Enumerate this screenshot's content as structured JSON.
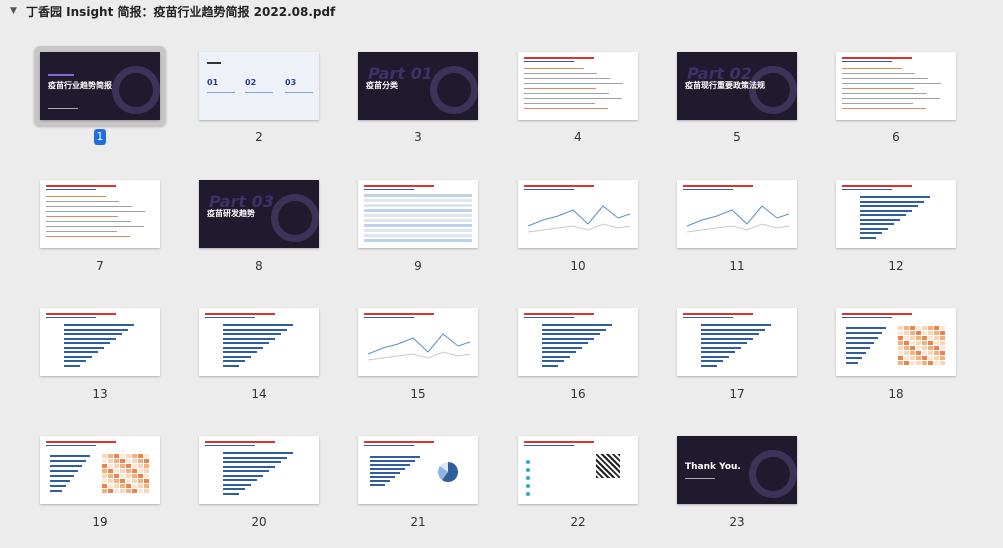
{
  "window": {
    "title": "丁香园 Insight 简报：疫苗行业趋势简报 2022.08.pdf"
  },
  "selected_page": "1",
  "pages": [
    {
      "num": "1",
      "kind": "cover",
      "title": "疫苗行业趋势简报"
    },
    {
      "num": "2",
      "kind": "toc",
      "items": [
        "01",
        "02",
        "03"
      ]
    },
    {
      "num": "3",
      "kind": "section",
      "part": "Part 01",
      "title": "疫苗分类"
    },
    {
      "num": "4",
      "kind": "text"
    },
    {
      "num": "5",
      "kind": "section",
      "part": "Part 02",
      "title": "疫苗现行重要政策法规"
    },
    {
      "num": "6",
      "kind": "text"
    },
    {
      "num": "7",
      "kind": "text"
    },
    {
      "num": "8",
      "kind": "section",
      "part": "Part 03",
      "title": "疫苗研发趋势"
    },
    {
      "num": "9",
      "kind": "table"
    },
    {
      "num": "10",
      "kind": "line"
    },
    {
      "num": "11",
      "kind": "line"
    },
    {
      "num": "12",
      "kind": "hbar"
    },
    {
      "num": "13",
      "kind": "bar"
    },
    {
      "num": "14",
      "kind": "hbar"
    },
    {
      "num": "15",
      "kind": "line"
    },
    {
      "num": "16",
      "kind": "hbar"
    },
    {
      "num": "17",
      "kind": "hbar"
    },
    {
      "num": "18",
      "kind": "heat"
    },
    {
      "num": "19",
      "kind": "heat"
    },
    {
      "num": "20",
      "kind": "hbar"
    },
    {
      "num": "21",
      "kind": "pie"
    },
    {
      "num": "22",
      "kind": "qr"
    },
    {
      "num": "23",
      "kind": "end",
      "title": "Thank You."
    }
  ],
  "colors": {
    "dark_slide": "#1f1a2e",
    "selection": "#1f6fe0",
    "accent_red": "#d9332b",
    "accent_blue": "#2f5e9e"
  }
}
